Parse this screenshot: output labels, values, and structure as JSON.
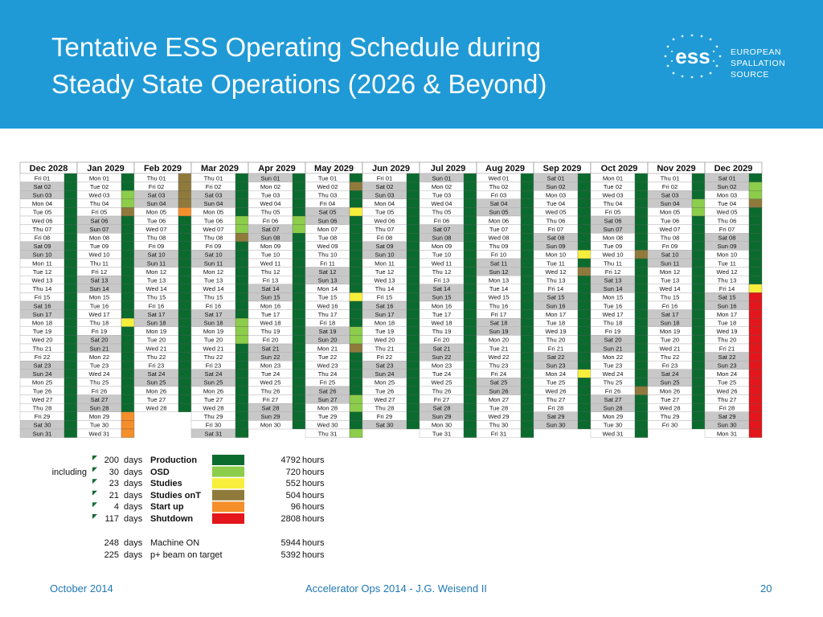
{
  "header": {
    "title_line1": "Tentative ESS Operating Schedule during",
    "title_line2": "Steady State Operations (2026 & Beyond)",
    "logo_text": "ess",
    "logo_lines": [
      "EUROPEAN",
      "SPALLATION",
      "SOURCE"
    ]
  },
  "colors": {
    "banner": "#1f9ad6",
    "production": "#0b6b2e",
    "osd": "#8ccd4a",
    "studies": "#f7ef3c",
    "studies_ont": "#8f7a3c",
    "startup": "#f58f2a",
    "shutdown": "#e3161b",
    "weekend": "#c8c8c8"
  },
  "schedule": {
    "months": [
      {
        "label": "Dec 2028",
        "first": 5,
        "days": 31,
        "codes": "PPPPPPPPPPPPPPPPPPPPPPPPPPPPPPP"
      },
      {
        "label": "Jan 2029",
        "first": 1,
        "days": 31,
        "codes": "PPOOTPPPPPPPPPPPPSPPPPPPPPPPUUU"
      },
      {
        "label": "Feb 2029",
        "first": 4,
        "days": 28,
        "codes": "NNNNUPPPPPPPPPPPPPPPPPPPPPPP"
      },
      {
        "label": "Mar 2029",
        "first": 4,
        "days": 31,
        "codes": "PPPPPOONPPPPPPPPPOOOPPPPPPPPPPP"
      },
      {
        "label": "Apr 2029",
        "first": 0,
        "days": 30,
        "codes": "PPPPPOOPPPPPPPPPPPPPPPPPPPPPPP"
      },
      {
        "label": "May 2029",
        "first": 2,
        "days": 31,
        "codes": "PNPPSPPPPPPPPPSPPPOONPPPPPOOPPO"
      },
      {
        "label": "Jun 2029",
        "first": 5,
        "days": 30,
        "codes": "PPPPPPPPPPPPPPPPPPPPPPPPPPPPPP"
      },
      {
        "label": "Jul 2029",
        "first": 0,
        "days": 31,
        "codes": "PPPPPPPPPPPPPPPPPPPPPPPPPPPPPPP"
      },
      {
        "label": "Aug 2029",
        "first": 3,
        "days": 31,
        "codes": "PPPPPPPPPPPPPPPPPPPPPPPPPPPPPPP"
      },
      {
        "label": "Sep 2029",
        "first": 6,
        "days": 30,
        "codes": "PPPPPPPPPSPNPPPPPPPPPPPSPPPPPP"
      },
      {
        "label": "Oct 2029",
        "first": 1,
        "days": 31,
        "codes": "PPPPPPPPPNPPPPPPPPPPPPPPPNPPPPP"
      },
      {
        "label": "Nov 2029",
        "first": 4,
        "days": 30,
        "codes": "PPPOOPPPPPPPPPPPPPPPPPPPPPPPPP"
      },
      {
        "label": "Dec 2029",
        "first": 6,
        "days": 31,
        "codes": "POOTPPPPPPPPPSXXXXXXXXXXXXXXXXX"
      }
    ],
    "day_names": [
      "Sun",
      "Mon",
      "Tue",
      "Wed",
      "Thu",
      "Fri",
      "Sat"
    ]
  },
  "legend": {
    "items": [
      {
        "prefix": "",
        "days": "200",
        "unit": "days",
        "label": "Production",
        "hours": "4792",
        "hours_unit": "hours",
        "color": "#0b6b2e"
      },
      {
        "prefix": "including",
        "days": "30",
        "unit": "days",
        "label": "OSD",
        "hours": "720",
        "hours_unit": "hours",
        "color": "#8ccd4a"
      },
      {
        "prefix": "",
        "days": "23",
        "unit": "days",
        "label": "Studies",
        "hours": "552",
        "hours_unit": "hours",
        "color": "#f7ef3c"
      },
      {
        "prefix": "",
        "days": "21",
        "unit": "days",
        "label": "Studies onT",
        "hours": "504",
        "hours_unit": "hours",
        "color": "#8f7a3c"
      },
      {
        "prefix": "",
        "days": "4",
        "unit": "days",
        "label": "Start up",
        "hours": "96",
        "hours_unit": "hours",
        "color": "#f58f2a"
      },
      {
        "prefix": "",
        "days": "117",
        "unit": "days",
        "label": "Shutdown",
        "hours": "2808",
        "hours_unit": "hours",
        "color": "#e3161b"
      }
    ],
    "totals": [
      {
        "days": "248",
        "unit": "days",
        "label": "Machine ON",
        "hours": "5944",
        "hours_unit": "hours"
      },
      {
        "days": "225",
        "unit": "days",
        "label": "p+ beam on target",
        "hours": "5392",
        "hours_unit": "hours"
      }
    ]
  },
  "footer": {
    "date": "October 2014",
    "center": "Accelerator Ops 2014 - J.G. Weisend II",
    "page": "20"
  }
}
